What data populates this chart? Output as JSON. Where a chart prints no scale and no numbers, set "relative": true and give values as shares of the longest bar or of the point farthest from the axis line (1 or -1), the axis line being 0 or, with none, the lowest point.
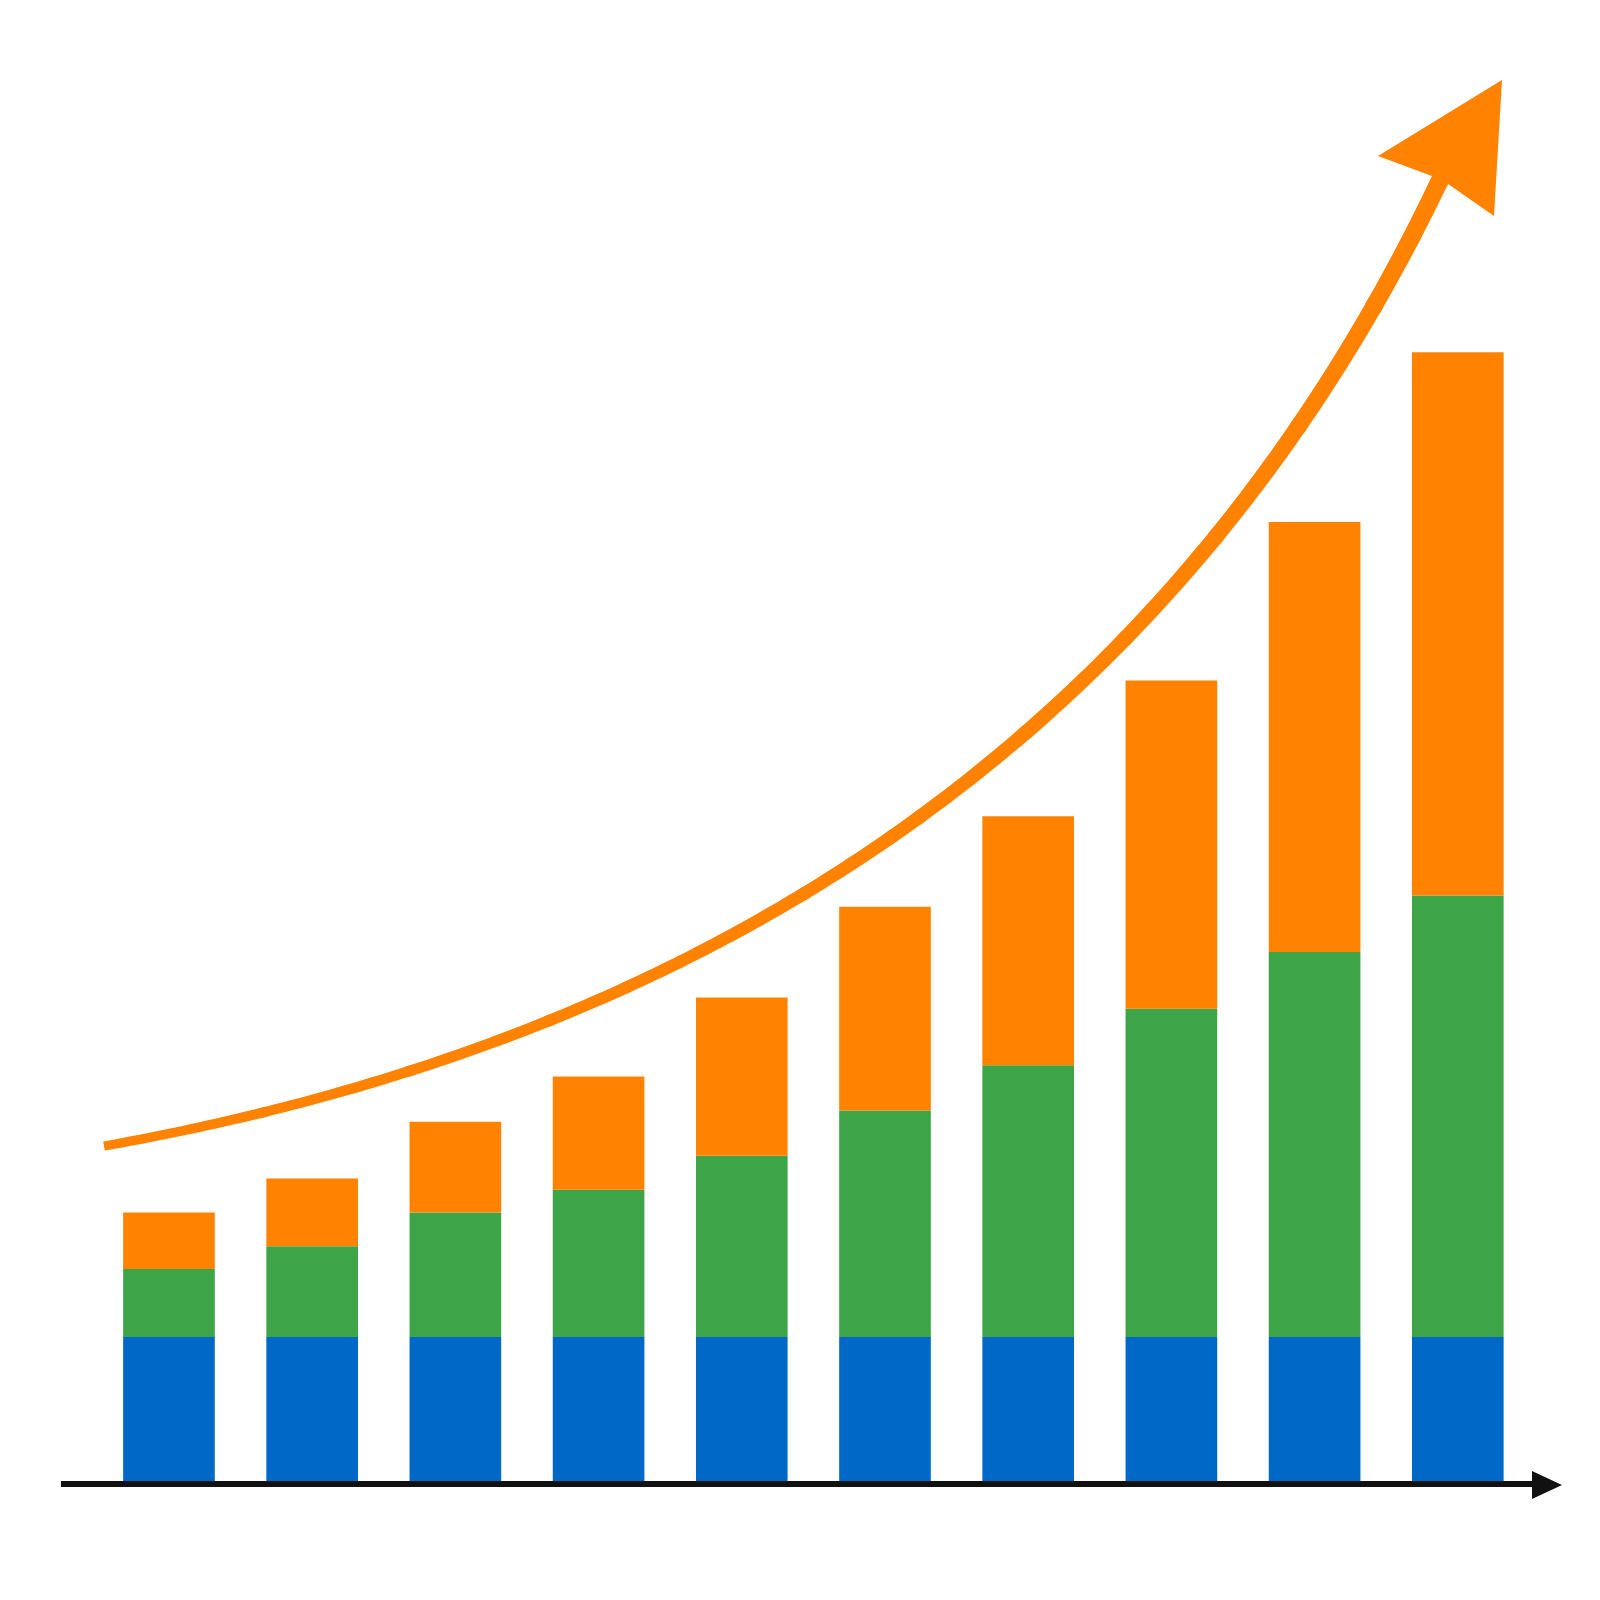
{
  "chart_data": {
    "type": "bar",
    "stacked": true,
    "relative": true,
    "categories": [
      null,
      null,
      null,
      null,
      null,
      null,
      null,
      null,
      null,
      null
    ],
    "series": [
      {
        "color": "#0069c8",
        "values": [
          0.13,
          0.13,
          0.13,
          0.13,
          0.13,
          0.13,
          0.13,
          0.13,
          0.13,
          0.13
        ]
      },
      {
        "color": "#3da548",
        "values": [
          0.06,
          0.08,
          0.11,
          0.13,
          0.16,
          0.2,
          0.24,
          0.29,
          0.34,
          0.39
        ]
      },
      {
        "color": "#ff8300",
        "values": [
          0.05,
          0.06,
          0.08,
          0.1,
          0.14,
          0.18,
          0.22,
          0.29,
          0.38,
          0.48
        ]
      }
    ]
  }
}
